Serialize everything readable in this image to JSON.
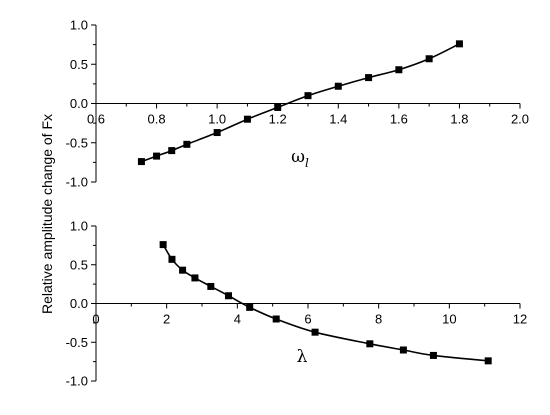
{
  "figure": {
    "ylabel": "Relative amplitude change of Fx"
  },
  "chart_data": [
    {
      "type": "line",
      "xlabel": "ω",
      "xlabel_subscript": "l",
      "ylabel": "",
      "xlim": [
        0.6,
        2.0
      ],
      "ylim": [
        -1.0,
        1.0
      ],
      "xticks": [
        "0.6",
        "0.8",
        "1.0",
        "1.2",
        "1.4",
        "1.6",
        "1.8",
        "2.0"
      ],
      "yticks": [
        "1.0",
        "0.5",
        "0.0",
        "-0.5",
        "-1.0"
      ],
      "series": [
        {
          "x": [
            0.75,
            0.8,
            0.85,
            0.9,
            1.0,
            1.1,
            1.2,
            1.3,
            1.4,
            1.5,
            1.6,
            1.7,
            1.8
          ],
          "y": [
            -0.74,
            -0.67,
            -0.6,
            -0.52,
            -0.37,
            -0.2,
            -0.05,
            0.1,
            0.22,
            0.33,
            0.43,
            0.57,
            0.76
          ]
        }
      ],
      "grid": false,
      "marker": "square",
      "color": "#000000"
    },
    {
      "type": "line",
      "xlabel": "λ",
      "ylabel": "",
      "xlim": [
        0,
        12
      ],
      "ylim": [
        -1.0,
        1.0
      ],
      "xticks": [
        "0",
        "2",
        "4",
        "6",
        "8",
        "10",
        "12"
      ],
      "yticks": [
        "1.0",
        "0.5",
        "0.0",
        "-0.5",
        "-1.0"
      ],
      "series": [
        {
          "x": [
            1.9,
            2.15,
            2.45,
            2.8,
            3.25,
            3.75,
            4.35,
            5.1,
            6.2,
            7.75,
            8.7,
            9.55,
            11.1
          ],
          "y": [
            0.76,
            0.57,
            0.43,
            0.33,
            0.22,
            0.1,
            -0.05,
            -0.2,
            -0.37,
            -0.52,
            -0.6,
            -0.67,
            -0.74
          ]
        }
      ],
      "grid": false,
      "marker": "square",
      "color": "#000000"
    }
  ]
}
